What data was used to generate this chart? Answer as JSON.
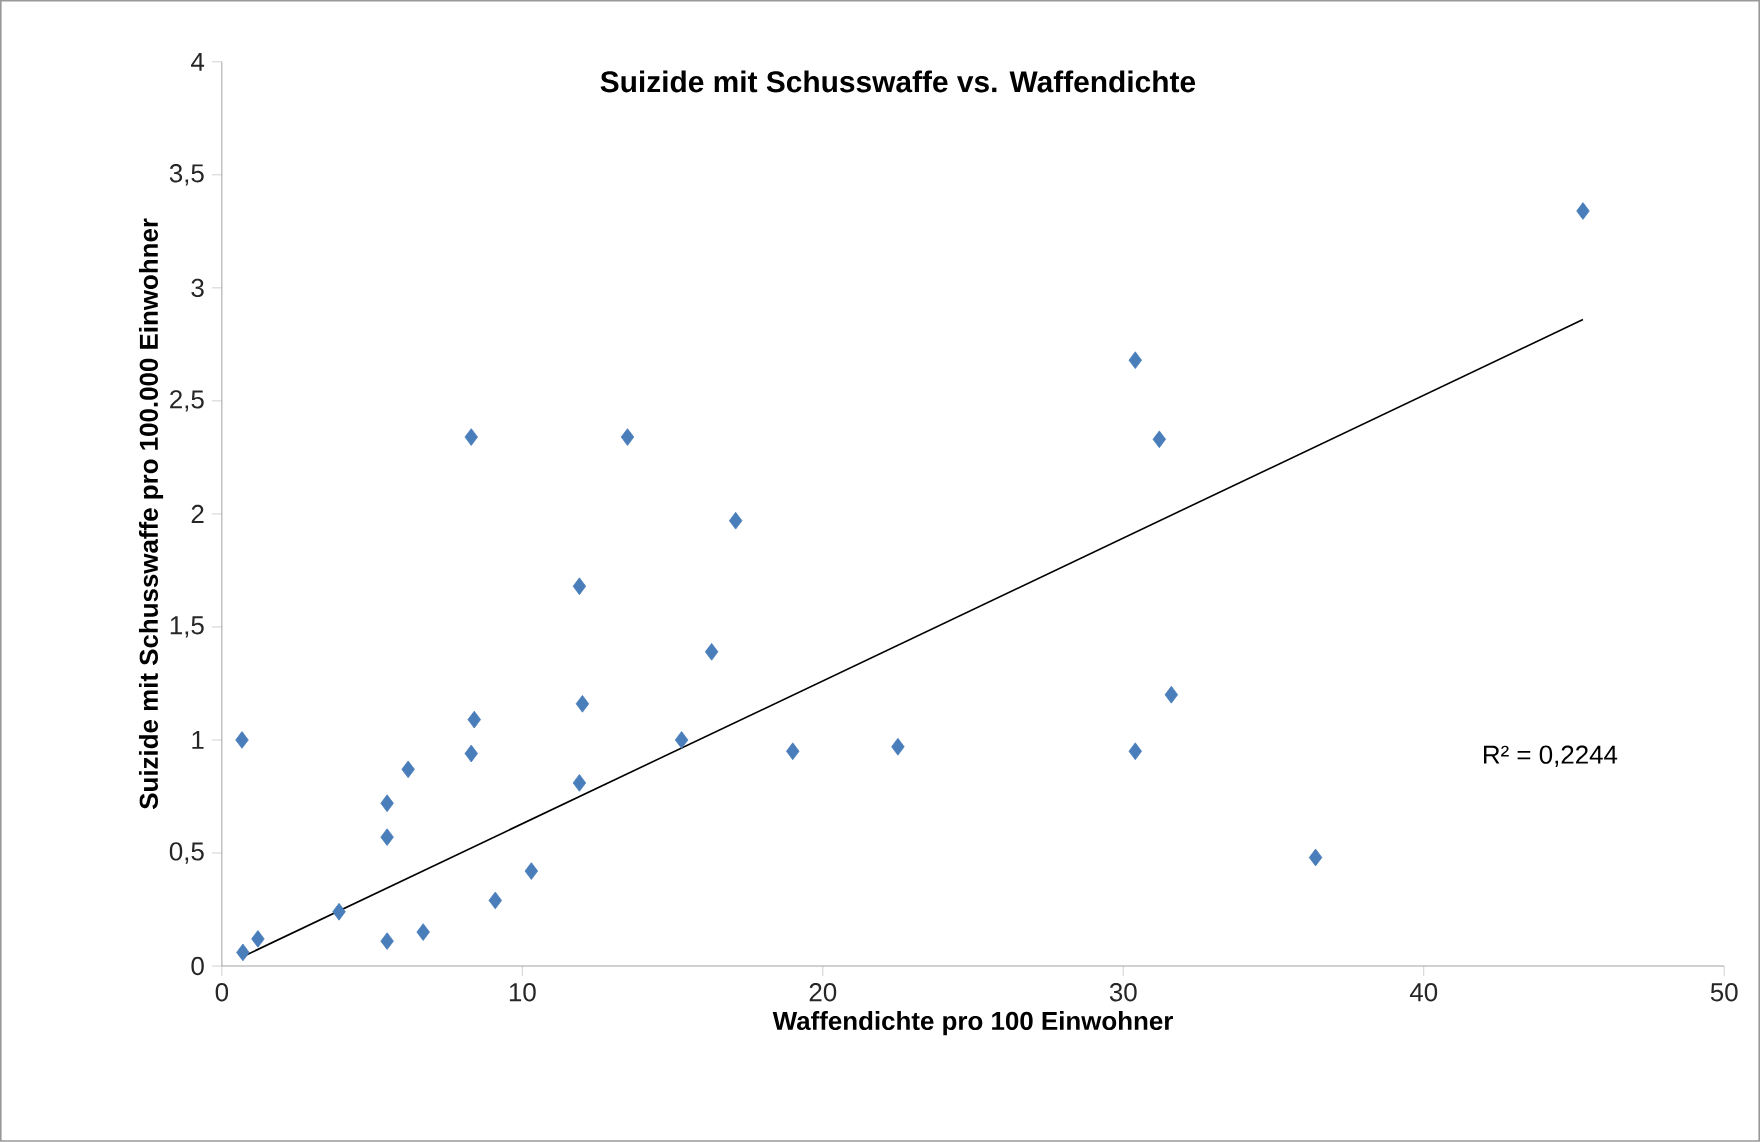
{
  "chart_data": {
    "type": "scatter",
    "title": "Suizide mit Schusswaffe vs. Waffendichte",
    "xlabel": "Waffendichte pro 100 Einwohner",
    "ylabel": "Suizide mit Schusswaffe pro 100.000 Einwohner",
    "annotations": [
      "R² = 0,2244"
    ],
    "xlim": [
      0,
      50
    ],
    "xticks": [
      0,
      10,
      20,
      30,
      40,
      50
    ],
    "ylim": [
      0,
      4
    ],
    "yticks": [
      0,
      {
        "value": 0.5,
        "label": "0,5"
      },
      1,
      {
        "value": 1.5,
        "label": "1,5"
      },
      2,
      {
        "value": 2.5,
        "label": "2,5"
      },
      3,
      {
        "value": 3.5,
        "label": "3,5"
      },
      4
    ],
    "grid": false,
    "marker": "diamond",
    "series": [
      {
        "color": "#4a7ebb",
        "x": [
          0.67,
          0.7,
          1.2,
          3.9,
          5.5,
          5.5,
          5.5,
          6.2,
          6.7,
          8.3,
          8.3,
          8.4,
          9.1,
          10.3,
          11.9,
          11.9,
          12.0,
          13.5,
          15.3,
          16.3,
          17.1,
          19.0,
          22.5,
          30.4,
          30.4,
          31.2,
          31.6,
          36.4,
          45.3
        ],
        "values": [
          1.0,
          0.06,
          0.12,
          0.24,
          0.72,
          0.57,
          0.11,
          0.87,
          0.15,
          2.34,
          0.94,
          1.09,
          0.29,
          0.42,
          1.68,
          0.81,
          1.16,
          2.34,
          1.0,
          1.39,
          1.97,
          0.95,
          0.97,
          0.95,
          2.68,
          2.33,
          1.2,
          0.48,
          3.34
        ]
      },
      {
        "type": "line",
        "color": "#000000",
        "marker": "none",
        "line_style": "solid",
        "x": [
          0.67,
          45.3
        ],
        "values": [
          0.04,
          2.86
        ]
      }
    ]
  }
}
